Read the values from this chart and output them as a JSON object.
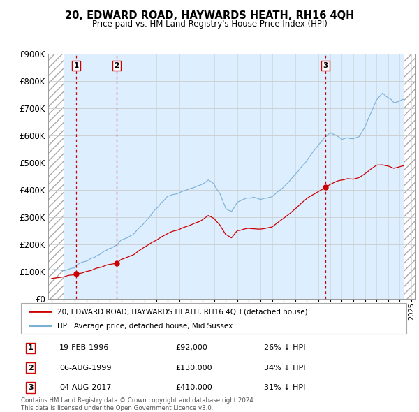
{
  "title": "20, EDWARD ROAD, HAYWARDS HEATH, RH16 4QH",
  "subtitle": "Price paid vs. HM Land Registry's House Price Index (HPI)",
  "footnote": "Contains HM Land Registry data © Crown copyright and database right 2024.\nThis data is licensed under the Open Government Licence v3.0.",
  "legend_line1": "20, EDWARD ROAD, HAYWARDS HEATH, RH16 4QH (detached house)",
  "legend_line2": "HPI: Average price, detached house, Mid Sussex",
  "sale_color": "#cc0000",
  "hpi_color": "#7ab0d4",
  "vline_color": "#cc0000",
  "background_plot": "#ddeeff",
  "grid_color": "#cccccc",
  "purchases": [
    {
      "date_num": 1996.12,
      "price": 92000,
      "label": "1",
      "date_str": "19-FEB-1996",
      "pct": "26%"
    },
    {
      "date_num": 1999.59,
      "price": 130000,
      "label": "2",
      "date_str": "06-AUG-1999",
      "pct": "34%"
    },
    {
      "date_num": 2017.59,
      "price": 410000,
      "label": "3",
      "date_str": "04-AUG-2017",
      "pct": "31%"
    }
  ],
  "ylim": [
    0,
    900000
  ],
  "yticks": [
    0,
    100000,
    200000,
    300000,
    400000,
    500000,
    600000,
    700000,
    800000,
    900000
  ],
  "xlim_start": 1993.7,
  "xlim_end": 2025.3,
  "hatch_left_end": 1995.0,
  "hatch_right_start": 2024.4
}
